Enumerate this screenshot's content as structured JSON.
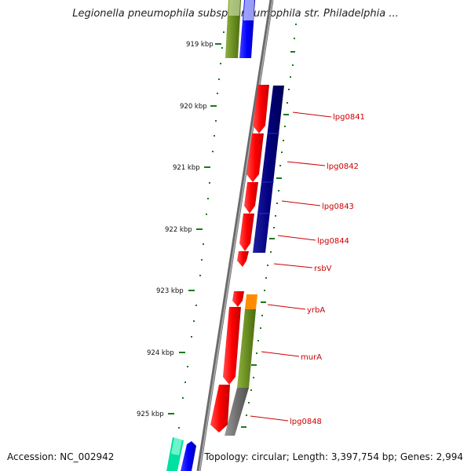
{
  "title": "Legionella pneumophila subsp. pneumophila str. Philadelphia ...",
  "accession": "Accession: NC_002942",
  "topology": "Topology: circular; Length: 3,397,754 bp; Genes: 2,994",
  "kbp_labels": [
    "919 kbp",
    "920 kbp",
    "921 kbp",
    "922 kbp",
    "923 kbp",
    "924 kbp",
    "925 kbp"
  ],
  "gene_labels": [
    "lpg0841",
    "lpg0842",
    "lpg0843",
    "lpg0844",
    "rsbV",
    "yrbA",
    "murA",
    "lpg0848"
  ],
  "colors": {
    "forward_gene": "#ff0000",
    "cog_navy": "#000080",
    "cog_olive": "#6b8e23",
    "cog_orange": "#ff8c00",
    "cog_gray": "#707070",
    "cog_blue": "#0000ff",
    "cog_teal": "#00e0a0",
    "tick_green": "#1a7a1a",
    "label_red": "#cc0000"
  }
}
